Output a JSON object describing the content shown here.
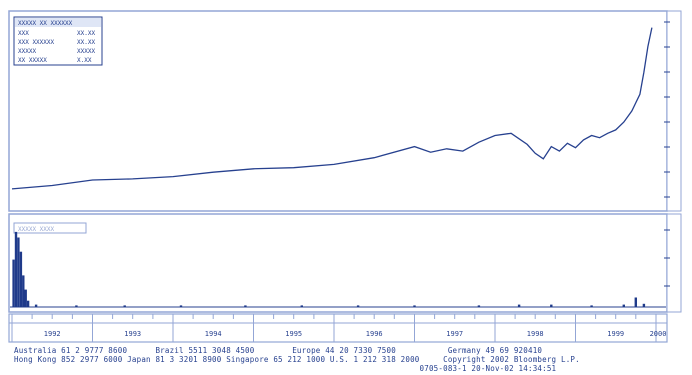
{
  "colors": {
    "line": "#27418f",
    "panel_border": "#93a6d6",
    "panel_bg": "#ffffff",
    "axis_text": "#27418f",
    "volume_bar": "#1f3a8a"
  },
  "legend_box": {
    "title": "XXXXX XX XXXXXX",
    "rows": [
      {
        "label": "XXX",
        "value": "XX.XX"
      },
      {
        "label": "XXX XXXXXX",
        "value": "XX.XX"
      },
      {
        "label": "XXXXX",
        "value": "XXXXX"
      },
      {
        "label": "XX XXXXX",
        "value": "X.XX"
      }
    ]
  },
  "volume_legend": {
    "label": "XXXXX XXXX"
  },
  "chart_data": [
    {
      "type": "line",
      "title": "",
      "x": [
        1992.0,
        1992.5,
        1993.0,
        1993.5,
        1994.0,
        1994.5,
        1995.0,
        1995.5,
        1996.0,
        1996.5,
        1997.0,
        1997.2,
        1997.4,
        1997.6,
        1997.8,
        1998.0,
        1998.2,
        1998.4,
        1998.5,
        1998.6,
        1998.7,
        1998.8,
        1998.9,
        1999.0,
        1999.1,
        1999.2,
        1999.3,
        1999.4,
        1999.5,
        1999.6,
        1999.7,
        1999.8,
        1999.85,
        1999.9,
        1999.95
      ],
      "series": [
        {
          "values": [
            10,
            13,
            18,
            19,
            21,
            25,
            28,
            29,
            32,
            38,
            48,
            43,
            46,
            44,
            52,
            58,
            60,
            50,
            42,
            37,
            48,
            44,
            51,
            47,
            54,
            58,
            56,
            60,
            63,
            70,
            80,
            95,
            115,
            138,
            155
          ]
        }
      ],
      "xlim": [
        1992.0,
        2000.1
      ],
      "ylim": [
        0,
        160
      ]
    },
    {
      "type": "bar",
      "title": "",
      "x": [
        1992.02,
        1992.05,
        1992.08,
        1992.11,
        1992.14,
        1992.17,
        1992.2,
        1992.3,
        1992.8,
        1993.4,
        1994.1,
        1994.9,
        1995.6,
        1996.3,
        1997.0,
        1997.8,
        1998.3,
        1998.7,
        1999.2,
        1999.6,
        1999.75,
        1999.85
      ],
      "series": [
        {
          "values": [
            60,
            95,
            88,
            70,
            40,
            22,
            8,
            3,
            2,
            2,
            2,
            2,
            2,
            2,
            2,
            2,
            3,
            3,
            2,
            3,
            12,
            4
          ]
        }
      ],
      "ylim": [
        0,
        100
      ]
    }
  ],
  "time_axis": {
    "labels": [
      "1992",
      "1993",
      "1994",
      "1995",
      "1996",
      "1997",
      "1998",
      "1999",
      "2000"
    ]
  },
  "footer": {
    "line1": "Australia 61 2 9777 8600      Brazil 5511 3048 4500        Europe 44 20 7330 7500           Germany 49 69 920410",
    "line2": "Hong Kong 852 2977 6000 Japan 81 3 3201 8900 Singapore 65 212 1000 U.S. 1 212 318 2000     Copyright 2002 Bloomberg L.P.",
    "line3": "                                                                                      0705-083-1 20-Nov-02 14:34:51"
  }
}
